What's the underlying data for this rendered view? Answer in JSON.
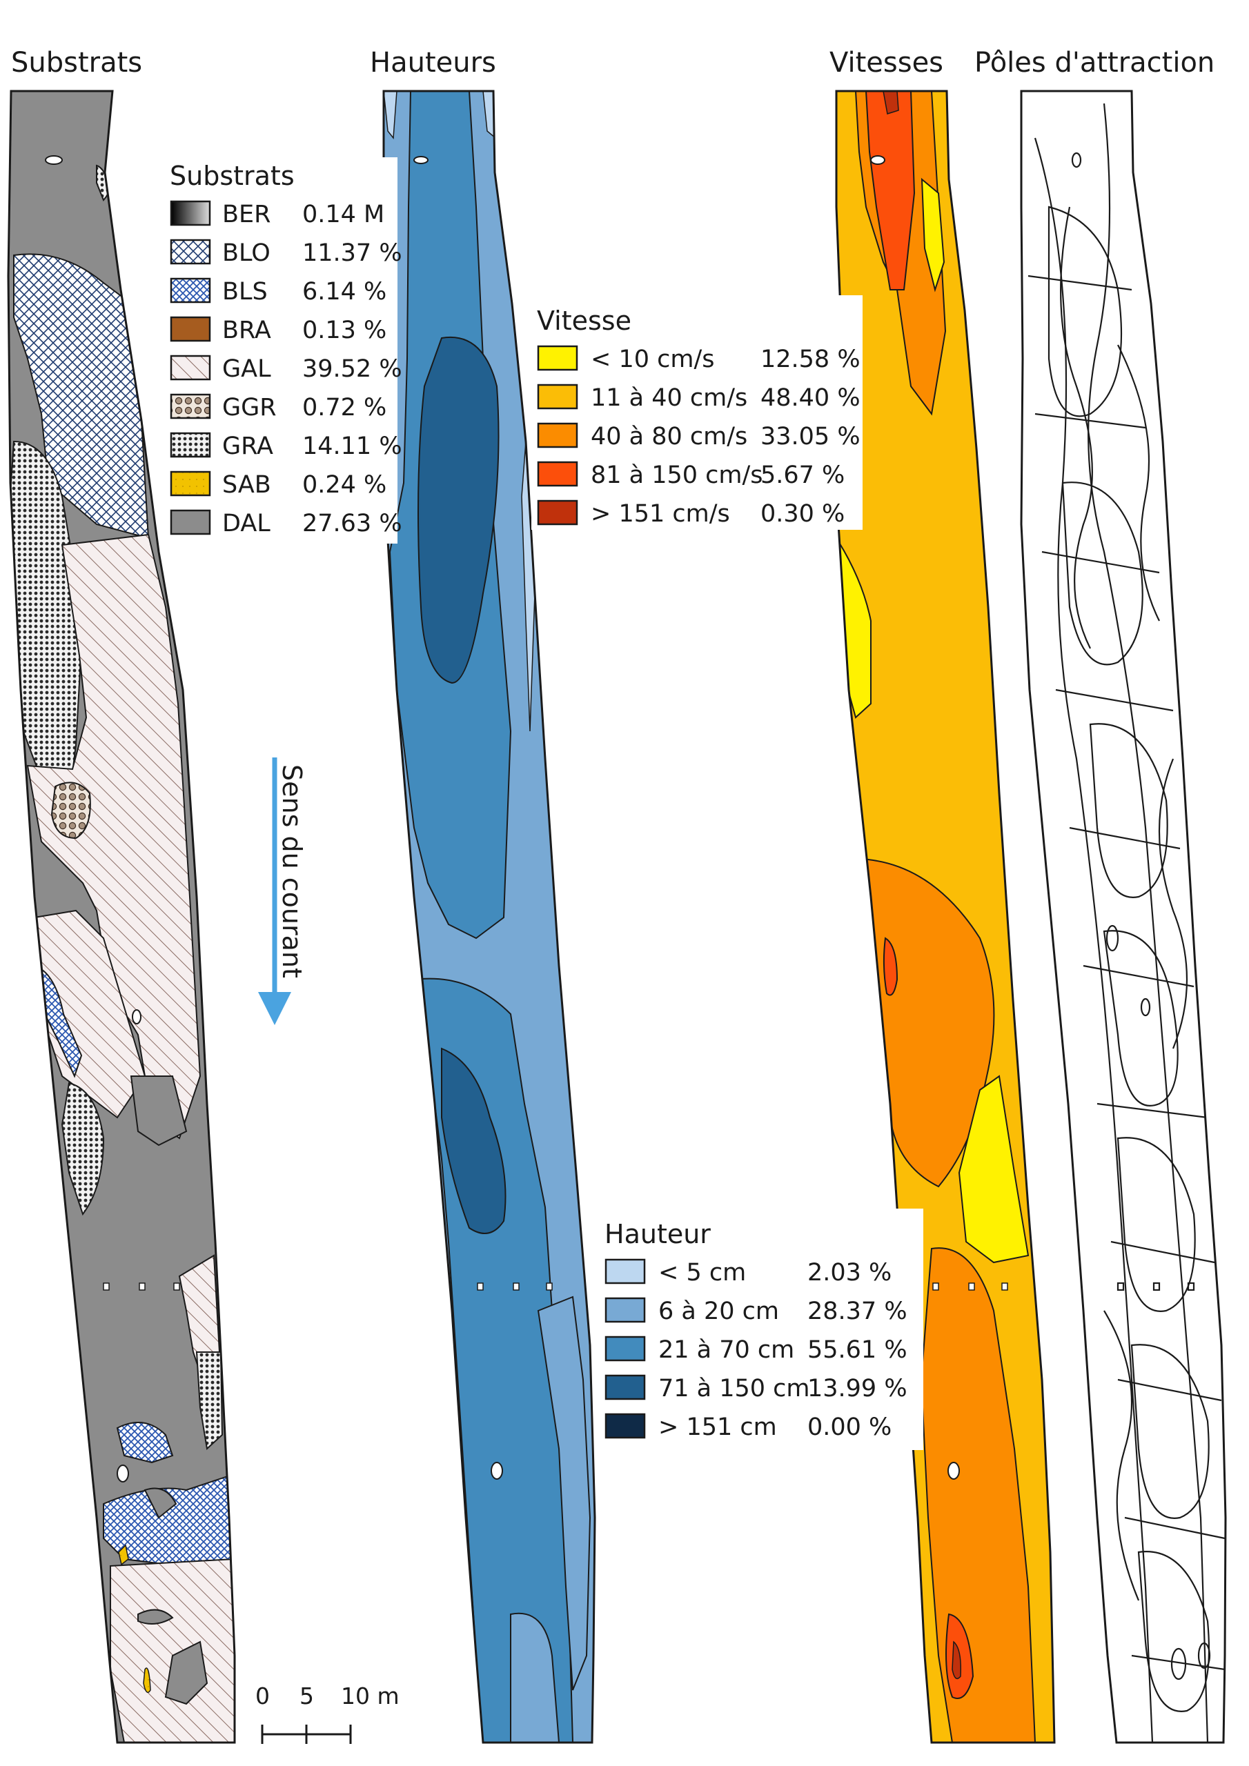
{
  "panels": {
    "substrats": "Substrats",
    "hauteurs": "Hauteurs",
    "vitesses": "Vitesses",
    "poles": "Pôles d'attraction"
  },
  "legend_substrats": {
    "title": "Substrats",
    "items": [
      {
        "code": "BER",
        "value": "0.14 M",
        "fill": "gradient-black",
        "color": "#000000"
      },
      {
        "code": "BLO",
        "value": "11.37 %",
        "fill": "cross-hatch",
        "color": "#1f3b6f"
      },
      {
        "code": "BLS",
        "value": "6.14 %",
        "fill": "cross-hatch-blue",
        "color": "#2b57b0"
      },
      {
        "code": "BRA",
        "value": "0.13 %",
        "fill": "solid",
        "color": "#a65c1f"
      },
      {
        "code": "GAL",
        "value": "39.52 %",
        "fill": "diagonal-hatch",
        "color": "#8a6b63"
      },
      {
        "code": "GGR",
        "value": "0.72 %",
        "fill": "large-dots",
        "color": "#a8927f"
      },
      {
        "code": "GRA",
        "value": "14.11 %",
        "fill": "small-dots",
        "color": "#2a2a2a"
      },
      {
        "code": "SAB",
        "value": "0.24 %",
        "fill": "solid-dotted",
        "color": "#f2c200"
      },
      {
        "code": "DAL",
        "value": "27.63 %",
        "fill": "solid",
        "color": "#8c8c8c"
      }
    ]
  },
  "legend_vitesse": {
    "title": "Vitesse",
    "items": [
      {
        "label": "< 10 cm/s",
        "value": "12.58 %",
        "color": "#fff200"
      },
      {
        "label": "11 à 40 cm/s",
        "value": "48.40 %",
        "color": "#fbbd06"
      },
      {
        "label": "40 à 80 cm/s",
        "value": "33.05 %",
        "color": "#fb8c00"
      },
      {
        "label": "81 à 150 cm/s",
        "value": "5.67 %",
        "color": "#fc4f0b"
      },
      {
        "label": "> 151 cm/s",
        "value": "0.30 %",
        "color": "#c0310c"
      }
    ]
  },
  "legend_hauteur": {
    "title": "Hauteur",
    "items": [
      {
        "label": "< 5 cm",
        "value": "2.03 %",
        "color": "#bdd7f0"
      },
      {
        "label": "6 à 20 cm",
        "value": "28.37 %",
        "color": "#78a9d4"
      },
      {
        "label": "21 à 70 cm",
        "value": "55.61 %",
        "color": "#428bbd"
      },
      {
        "label": "71 à 150 cm",
        "value": "13.99 %",
        "color": "#22608f"
      },
      {
        "label": "> 151 cm",
        "value": "0.00 %",
        "color": "#0f2a47"
      }
    ]
  },
  "flow": {
    "label": "Sens du courant",
    "color": "#4aa3e0"
  },
  "scale": {
    "labels": [
      "0",
      "5",
      "10 m"
    ]
  },
  "colors": {
    "dal": "#8c8c8c",
    "gal_bg": "#f6efef",
    "outline": "#1a1a1a"
  }
}
